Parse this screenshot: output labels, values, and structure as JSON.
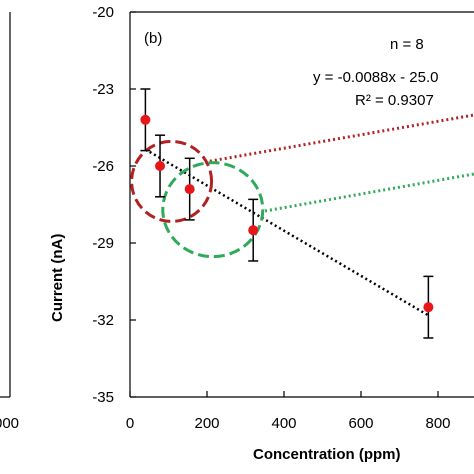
{
  "chart_data": {
    "type": "scatter",
    "panel_label": "(b)",
    "xlabel": "Concentration (ppm)",
    "ylabel": "Current (nA)",
    "xlim": [
      0,
      900
    ],
    "ylim": [
      -35,
      -20
    ],
    "x_ticks": [
      0,
      200,
      400,
      600,
      800
    ],
    "x_tick_labels": [
      "0",
      "200",
      "400",
      "600",
      "800"
    ],
    "y_ticks": [
      -20,
      -23,
      -26,
      -29,
      -32,
      -35
    ],
    "y_tick_labels": [
      "-20",
      "-23",
      "-26",
      "-29",
      "-32",
      "-35"
    ],
    "grid": false,
    "points": [
      {
        "x": 40,
        "y": -24.2,
        "err": 1.2
      },
      {
        "x": 78,
        "y": -26.0,
        "err": 1.2
      },
      {
        "x": 155,
        "y": -26.9,
        "err": 1.2
      },
      {
        "x": 320,
        "y": -28.5,
        "err": 1.2
      },
      {
        "x": 775,
        "y": -31.5,
        "err": 1.2
      }
    ],
    "trendline": {
      "slope": -0.0088,
      "intercept": -25.0,
      "x_start": 40,
      "x_end": 775
    },
    "annotations": {
      "n_text": "n = 8",
      "equation_text": "y = -0.0088x - 25.0",
      "r2_text": "R² = 0.9307"
    },
    "highlight_circles": [
      {
        "cx": 108,
        "cy": -26.6,
        "color": "#b22222"
      },
      {
        "cx": 215,
        "cy": -27.7,
        "color": "#2eaa5a"
      }
    ],
    "left_panel_tick_fragment": "000",
    "colors": {
      "marker": "#e8161b",
      "trendline": "#000000",
      "circle_red": "#b22222",
      "circle_green": "#2eaa5a"
    }
  }
}
